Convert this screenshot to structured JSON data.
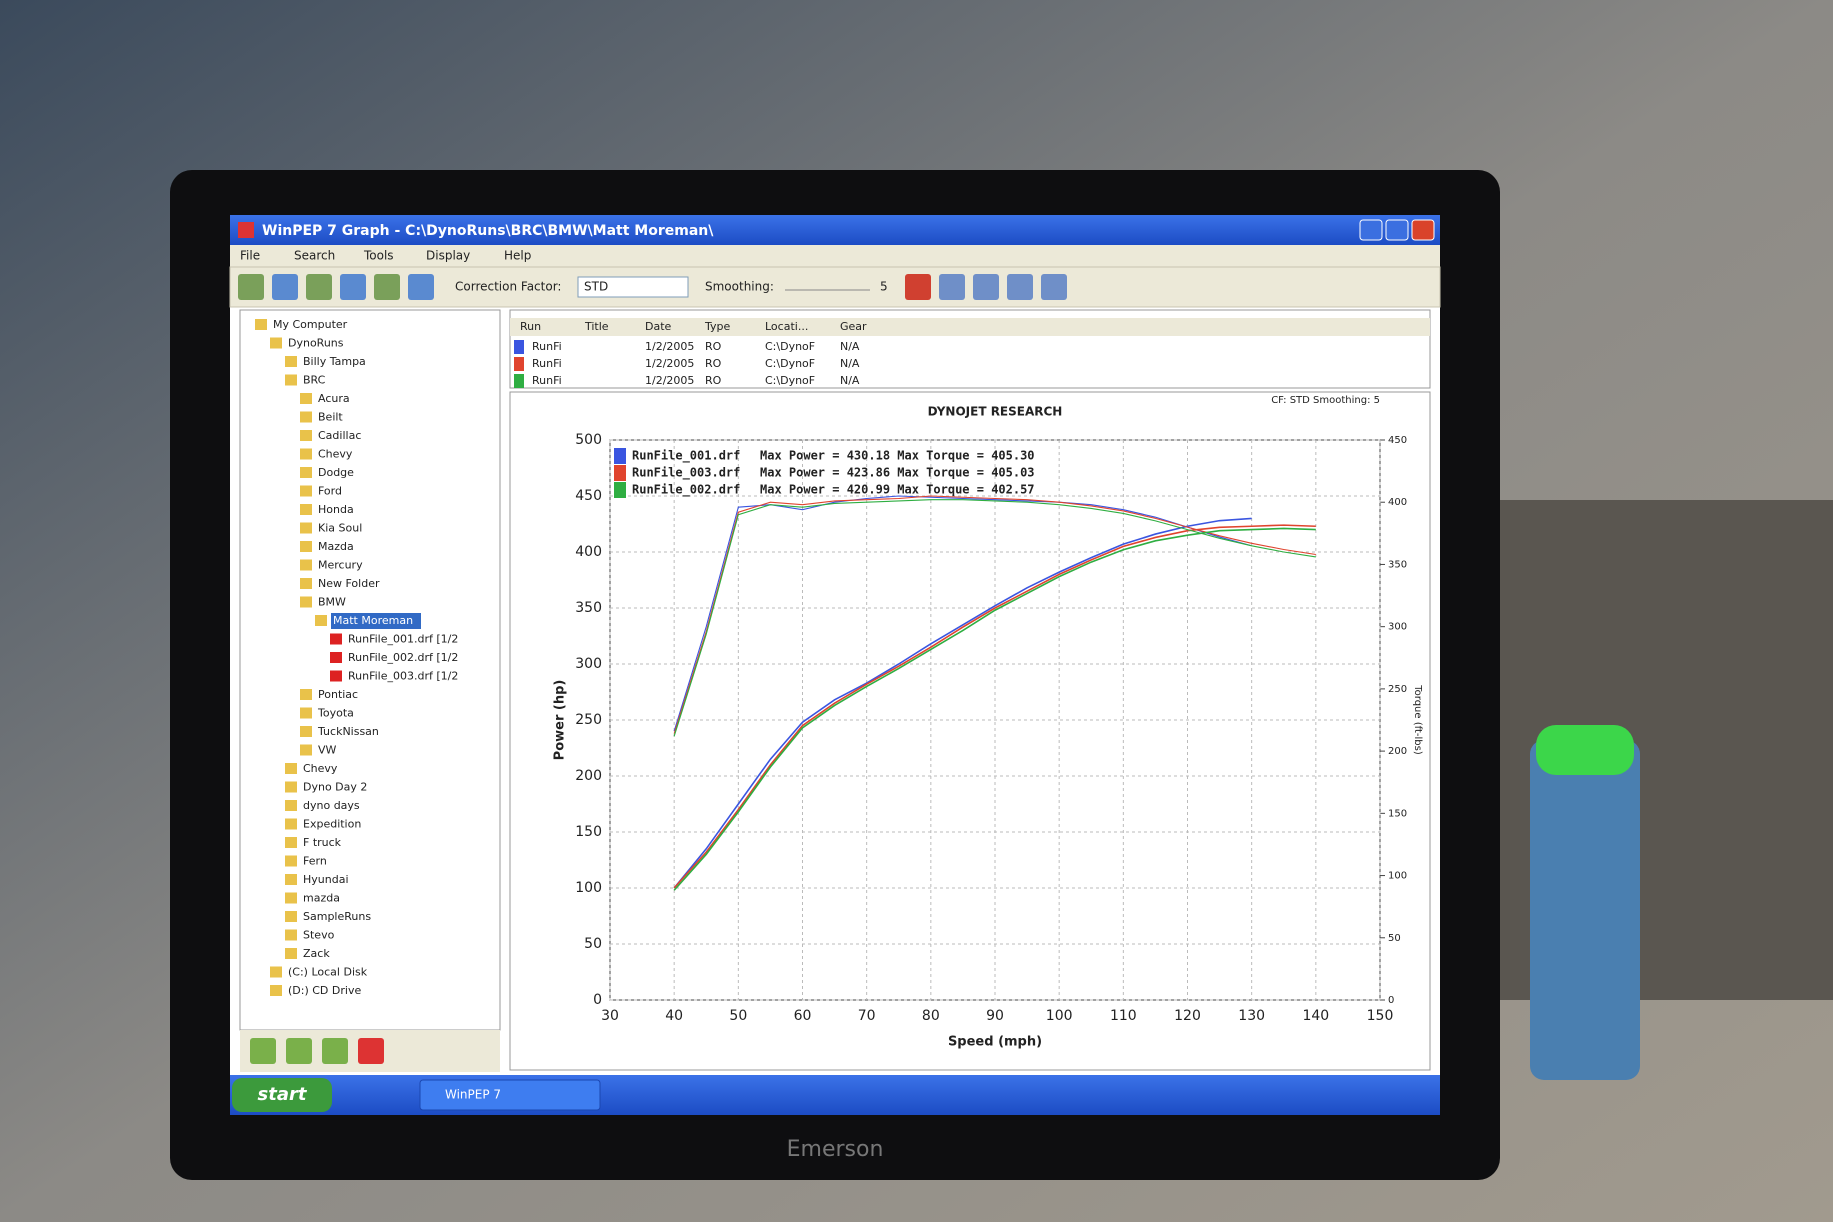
{
  "window": {
    "title": "WinPEP 7    Graph - C:\\DynoRuns\\BRC\\BMW\\Matt Moreman\\"
  },
  "menu": [
    "File",
    "Search",
    "Tools",
    "Display",
    "Help"
  ],
  "toolbar": {
    "correction_label": "Correction Factor:",
    "correction_value": "STD",
    "smoothing_label": "Smoothing:",
    "smoothing_value": "5"
  },
  "tree": [
    "My Computer",
    "DynoRuns",
    "Billy Tampa",
    "BRC",
    "Acura",
    "Beilt",
    "Cadillac",
    "Chevy",
    "Dodge",
    "Ford",
    "Honda",
    "Kia Soul",
    "Mazda",
    "Mercury",
    "New Folder",
    "BMW",
    "Matt Moreman",
    "RunFile_001.drf [1/2",
    "RunFile_002.drf [1/2",
    "RunFile_003.drf [1/2",
    "Pontiac",
    "Toyota",
    "TuckNissan",
    "VW",
    "Chevy",
    "Dyno Day 2",
    "dyno days",
    "Expedition",
    "F truck",
    "Fern",
    "Hyundai",
    "mazda",
    "SampleRuns",
    "Stevo",
    "Zack",
    "(C:) Local Disk",
    "(D:) CD Drive"
  ],
  "table": {
    "columns": [
      "Run",
      "Title",
      "Date",
      "Type",
      "Locati...",
      "Gear"
    ],
    "rows": [
      {
        "run": "RunFi",
        "date": "1/2/2005",
        "type": "RO",
        "location": "C:\\DynoF",
        "gear": "N/A"
      },
      {
        "run": "RunFi",
        "date": "1/2/2005",
        "type": "RO",
        "location": "C:\\DynoF",
        "gear": "N/A"
      },
      {
        "run": "RunFi",
        "date": "1/2/2005",
        "type": "RO",
        "location": "C:\\DynoF",
        "gear": "N/A"
      }
    ]
  },
  "chart_data": {
    "type": "line",
    "title": "DYNOJET RESEARCH",
    "subtitle": "CF: STD  Smoothing: 5",
    "x_label": "Speed (mph)",
    "y_label": "Power (hp)",
    "y2_label": "Torque (ft-lbs)",
    "x": [
      40,
      45,
      50,
      55,
      60,
      65,
      70,
      75,
      80,
      85,
      90,
      95,
      100,
      105,
      110,
      115,
      120,
      125,
      130,
      135,
      140
    ],
    "xlim": [
      30,
      150
    ],
    "xticks": [
      30,
      40,
      50,
      60,
      70,
      80,
      90,
      100,
      110,
      120,
      130,
      140,
      150
    ],
    "ylim": [
      0,
      500
    ],
    "yticks": [
      0,
      50,
      100,
      150,
      200,
      250,
      300,
      350,
      400,
      450,
      500
    ],
    "y2lim": [
      0,
      450
    ],
    "y2ticks": [
      0,
      50,
      100,
      150,
      200,
      250,
      300,
      350,
      400,
      450
    ],
    "grid": true,
    "series": [
      {
        "name": "RunFile_001.drf",
        "summary": "Max Power = 430.18 Max Torque = 405.30",
        "color": "#3a55e0",
        "values": [
          100,
          135,
          175,
          215,
          248,
          268,
          283,
          300,
          318,
          335,
          352,
          368,
          382,
          395,
          407,
          416,
          423,
          428,
          430,
          null,
          null
        ],
        "torque": [
          216,
          300,
          396,
          398,
          394,
          400,
          403,
          405,
          404,
          403,
          402,
          401,
          400,
          398,
          394,
          388,
          380,
          372,
          365,
          null,
          null
        ]
      },
      {
        "name": "RunFile_003.drf",
        "summary": "Max Power = 423.86 Max Torque = 405.03",
        "color": "#e0442e",
        "values": [
          100,
          132,
          170,
          210,
          245,
          265,
          282,
          298,
          315,
          333,
          350,
          365,
          380,
          393,
          405,
          413,
          419,
          422,
          423,
          424,
          423
        ],
        "torque": [
          214,
          296,
          392,
          400,
          398,
          401,
          402,
          403,
          405,
          404,
          403,
          402,
          400,
          397,
          393,
          387,
          380,
          373,
          367,
          362,
          358
        ]
      },
      {
        "name": "RunFile_002.drf",
        "summary": "Max Power = 420.99 Max Torque = 402.57",
        "color": "#2fae42",
        "values": [
          98,
          130,
          168,
          208,
          243,
          263,
          280,
          296,
          313,
          330,
          348,
          363,
          378,
          391,
          402,
          410,
          415,
          419,
          420,
          421,
          420
        ],
        "torque": [
          212,
          294,
          390,
          398,
          396,
          399,
          400,
          401,
          402,
          402,
          401,
          400,
          398,
          395,
          391,
          385,
          378,
          371,
          365,
          360,
          356
        ]
      }
    ]
  },
  "taskbar": {
    "start": "start",
    "task": "WinPEP 7"
  },
  "monitor": {
    "brand": "Emerson"
  }
}
